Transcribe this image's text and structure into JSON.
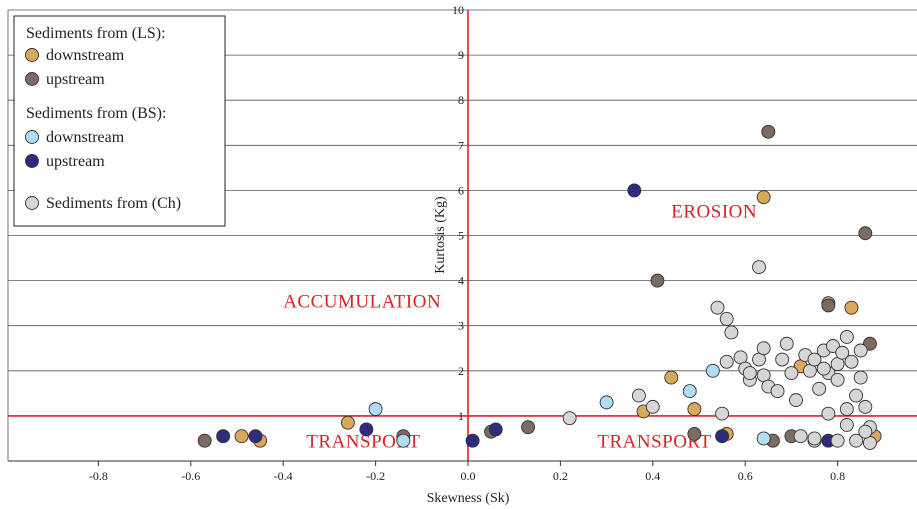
{
  "chart_data": {
    "type": "scatter",
    "xlabel": "Skewness (Sk)",
    "ylabel": "Kurtosis (Kg)",
    "xlim": [
      -1.0,
      1.0
    ],
    "ylim": [
      0,
      10
    ],
    "x_ticks": [
      "-0.8",
      "-0.6",
      "-0.4",
      "-0.2",
      "0.0",
      "0.2",
      "0.4",
      "0.6",
      "0.8"
    ],
    "y_ticks": [
      "1",
      "2",
      "3",
      "4",
      "5",
      "6",
      "7",
      "8",
      "9",
      "10"
    ],
    "grid": "horizontal",
    "threshold_lines": {
      "x": 0.0,
      "y": 1.0,
      "color": "#d8232a"
    },
    "regions": [
      {
        "label": "EROSION",
        "x": 0.44,
        "y": 5.4
      },
      {
        "label": "ACCUMULATION",
        "x": -0.4,
        "y": 3.4
      },
      {
        "label": "TRANSPORT",
        "x": -0.35,
        "y": 0.3
      },
      {
        "label": "TRANSPORT",
        "x": 0.28,
        "y": 0.3
      }
    ],
    "legend": {
      "position": "top-left",
      "groups": [
        {
          "title": "Sediments from (LS):",
          "entries": [
            "downstream",
            "upstream"
          ]
        },
        {
          "title": "Sediments from (BS):",
          "entries": [
            "downstream",
            "upstream"
          ]
        },
        {
          "title": "",
          "entries": [
            "Sediments from (Ch)"
          ]
        }
      ]
    },
    "series": [
      {
        "color": "#d9a85b",
        "x": [
          -0.49,
          -0.45,
          -0.26,
          0.38,
          0.44,
          0.49,
          0.56,
          0.64,
          0.72,
          0.78,
          0.83,
          0.88
        ],
        "y": [
          0.55,
          0.45,
          0.85,
          1.1,
          1.85,
          1.15,
          0.6,
          5.85,
          2.1,
          3.5,
          3.4,
          0.55
        ]
      },
      {
        "color": "#7d6b61",
        "x": [
          -0.57,
          -0.14,
          0.05,
          0.13,
          0.41,
          0.49,
          0.66,
          0.65,
          0.7,
          0.78,
          0.86,
          0.87
        ],
        "y": [
          0.45,
          0.55,
          0.65,
          0.75,
          4.0,
          0.6,
          0.45,
          7.3,
          0.55,
          3.45,
          5.05,
          2.6
        ]
      },
      {
        "color": "#aeddf4",
        "x": [
          -0.2,
          -0.14,
          0.3,
          0.48,
          0.53,
          0.64,
          0.75
        ],
        "y": [
          1.15,
          0.45,
          1.3,
          1.55,
          2.0,
          0.5,
          0.45
        ]
      },
      {
        "color": "#2e2c7e",
        "x": [
          -0.53,
          -0.46,
          -0.22,
          0.01,
          0.06,
          0.36,
          0.55,
          0.78
        ],
        "y": [
          0.55,
          0.55,
          0.7,
          0.45,
          0.7,
          6.0,
          0.55,
          0.45
        ]
      },
      {
        "color": "#d6d6d6",
        "x": [
          0.22,
          0.37,
          0.4,
          0.54,
          0.56,
          0.57,
          0.56,
          0.55,
          0.59,
          0.6,
          0.61,
          0.61,
          0.63,
          0.64,
          0.65,
          0.63,
          0.64,
          0.67,
          0.68,
          0.69,
          0.7,
          0.71,
          0.73,
          0.74,
          0.75,
          0.76,
          0.77,
          0.78,
          0.79,
          0.8,
          0.8,
          0.81,
          0.82,
          0.82,
          0.83,
          0.84,
          0.85,
          0.85,
          0.86,
          0.87,
          0.87,
          0.78,
          0.8,
          0.82,
          0.84,
          0.86,
          0.72,
          0.75,
          0.77
        ],
        "y": [
          0.95,
          1.45,
          1.2,
          3.4,
          3.15,
          2.85,
          2.2,
          1.05,
          2.3,
          2.05,
          1.8,
          1.95,
          2.25,
          1.9,
          1.65,
          4.3,
          2.5,
          1.55,
          2.25,
          2.6,
          1.95,
          1.35,
          2.35,
          2.0,
          2.25,
          1.6,
          2.45,
          1.95,
          2.55,
          2.15,
          1.8,
          2.4,
          1.15,
          2.75,
          2.2,
          1.45,
          2.45,
          1.85,
          1.2,
          0.75,
          0.4,
          1.05,
          0.45,
          0.8,
          0.45,
          0.65,
          0.55,
          0.5,
          2.05
        ]
      }
    ]
  }
}
